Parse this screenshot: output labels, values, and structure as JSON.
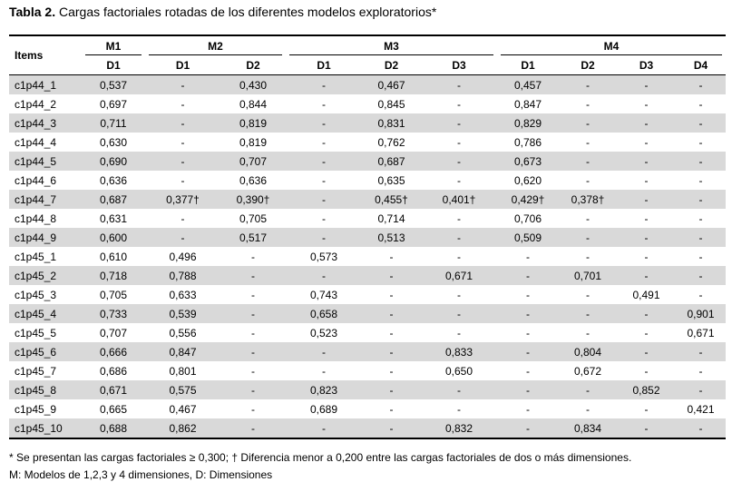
{
  "title": {
    "bold": "Tabla 2.",
    "text": " Cargas factoriales rotadas de los diferentes modelos exploratorios*"
  },
  "header": {
    "items": "Items",
    "groups": [
      "M1",
      "M2",
      "M3",
      "M4"
    ],
    "dims": [
      "D1",
      "D1",
      "D2",
      "D1",
      "D2",
      "D3",
      "D1",
      "D2",
      "D3",
      "D4"
    ]
  },
  "rows": [
    [
      "c1p44_1",
      "0,537",
      "-",
      "0,430",
      "-",
      "0,467",
      "-",
      "0,457",
      "-",
      "-",
      "-"
    ],
    [
      "c1p44_2",
      "0,697",
      "-",
      "0,844",
      "-",
      "0,845",
      "-",
      "0,847",
      "-",
      "-",
      "-"
    ],
    [
      "c1p44_3",
      "0,711",
      "-",
      "0,819",
      "-",
      "0,831",
      "-",
      "0,829",
      "-",
      "-",
      "-"
    ],
    [
      "c1p44_4",
      "0,630",
      "-",
      "0,819",
      "-",
      "0,762",
      "-",
      "0,786",
      "-",
      "-",
      "-"
    ],
    [
      "c1p44_5",
      "0,690",
      "-",
      "0,707",
      "-",
      "0,687",
      "-",
      "0,673",
      "-",
      "-",
      "-"
    ],
    [
      "c1p44_6",
      "0,636",
      "-",
      "0,636",
      "-",
      "0,635",
      "-",
      "0,620",
      "-",
      "-",
      "-"
    ],
    [
      "c1p44_7",
      "0,687",
      "0,377†",
      "0,390†",
      "-",
      "0,455†",
      "0,401†",
      "0,429†",
      "0,378†",
      "-",
      "-"
    ],
    [
      "c1p44_8",
      "0,631",
      "-",
      "0,705",
      "-",
      "0,714",
      "-",
      "0,706",
      "-",
      "-",
      "-"
    ],
    [
      "c1p44_9",
      "0,600",
      "-",
      "0,517",
      "-",
      "0,513",
      "-",
      "0,509",
      "-",
      "-",
      "-"
    ],
    [
      "c1p45_1",
      "0,610",
      "0,496",
      "-",
      "0,573",
      "-",
      "-",
      "-",
      "-",
      "-",
      "-"
    ],
    [
      "c1p45_2",
      "0,718",
      "0,788",
      "-",
      "-",
      "-",
      "0,671",
      "-",
      "0,701",
      "-",
      "-"
    ],
    [
      "c1p45_3",
      "0,705",
      "0,633",
      "-",
      "0,743",
      "-",
      "-",
      "-",
      "-",
      "0,491",
      "-"
    ],
    [
      "c1p45_4",
      "0,733",
      "0,539",
      "-",
      "0,658",
      "-",
      "-",
      "-",
      "-",
      "-",
      "0,901"
    ],
    [
      "c1p45_5",
      "0,707",
      "0,556",
      "-",
      "0,523",
      "-",
      "-",
      "-",
      "-",
      "-",
      "0,671"
    ],
    [
      "c1p45_6",
      "0,666",
      "0,847",
      "-",
      "-",
      "-",
      "0,833",
      "-",
      "0,804",
      "-",
      "-"
    ],
    [
      "c1p45_7",
      "0,686",
      "0,801",
      "-",
      "-",
      "-",
      "0,650",
      "-",
      "0,672",
      "-",
      "-"
    ],
    [
      "c1p45_8",
      "0,671",
      "0,575",
      "-",
      "0,823",
      "-",
      "-",
      "-",
      "-",
      "0,852",
      "-"
    ],
    [
      "c1p45_9",
      "0,665",
      "0,467",
      "-",
      "0,689",
      "-",
      "-",
      "-",
      "-",
      "-",
      "0,421"
    ],
    [
      "c1p45_10",
      "0,688",
      "0,862",
      "-",
      "-",
      "-",
      "0,832",
      "-",
      "0,834",
      "-",
      "-"
    ]
  ],
  "footnotes": [
    "* Se presentan las cargas factoriales ≥ 0,300; † Diferencia menor a 0,200 entre las cargas factoriales de dos o más dimensiones.",
    "M: Modelos de 1,2,3 y 4 dimensiones, D: Dimensiones"
  ],
  "colors": {
    "shade": "#d9d9d9"
  }
}
